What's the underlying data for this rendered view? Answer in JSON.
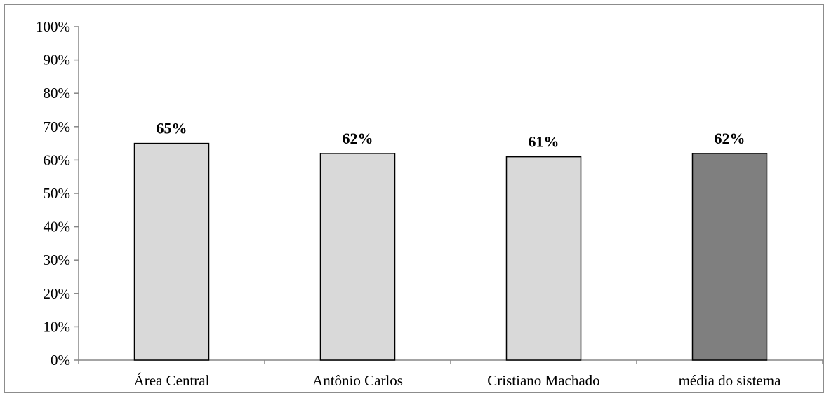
{
  "chart_data": {
    "type": "bar",
    "categories": [
      "Área Central",
      "Antônio Carlos",
      "Cristiano Machado",
      "média do sistema"
    ],
    "values": [
      65,
      62,
      61,
      62
    ],
    "data_labels": [
      "65%",
      "62%",
      "61%",
      "62%"
    ],
    "y_ticks": [
      "0%",
      "10%",
      "20%",
      "30%",
      "40%",
      "50%",
      "60%",
      "70%",
      "80%",
      "90%",
      "100%"
    ],
    "ylim": [
      0,
      100
    ],
    "title": "",
    "xlabel": "",
    "ylabel": "",
    "grid": false,
    "bar_colors": [
      "#d9d9d9",
      "#d9d9d9",
      "#d9d9d9",
      "#7f7f7f"
    ],
    "bar_edge_color": "#000000",
    "axis_color": "#868686"
  }
}
